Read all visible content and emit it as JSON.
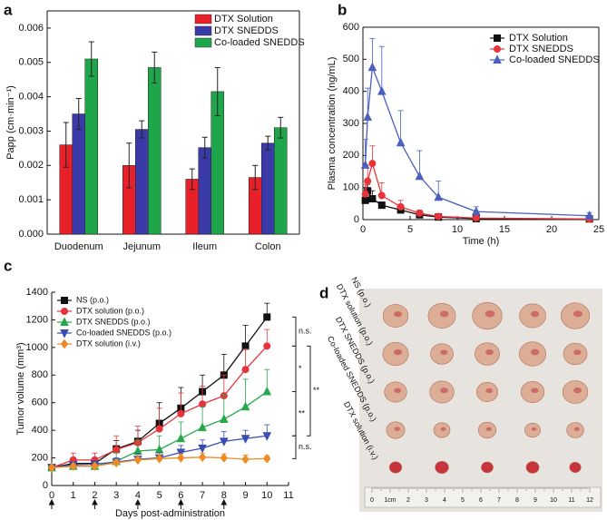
{
  "chart_data": [
    {
      "panel": "a",
      "type": "bar",
      "y_label": "Papp (cm·min⁻¹)",
      "categories": [
        "Duodenum",
        "Jejunum",
        "Ileum",
        "Colon"
      ],
      "series": [
        {
          "name": "DTX Solution",
          "color": "#e8202a",
          "values": [
            0.0026,
            0.002,
            0.0016,
            0.00165
          ],
          "errors": [
            0.00065,
            0.00065,
            0.0003,
            0.00035
          ]
        },
        {
          "name": "DTX SNEDDS",
          "color": "#3a3aa8",
          "values": [
            0.0035,
            0.00305,
            0.00252,
            0.00265
          ],
          "errors": [
            0.00045,
            0.00025,
            0.0003,
            0.0002
          ]
        },
        {
          "name": "Co-loaded SNEDDS",
          "color": "#1fa64a",
          "values": [
            0.0051,
            0.00485,
            0.00415,
            0.0031
          ],
          "errors": [
            0.0005,
            0.00045,
            0.0007,
            0.0003
          ]
        }
      ],
      "ylim": [
        0,
        0.0065
      ],
      "yticks": [
        {
          "value": 0,
          "label": "0.000"
        },
        {
          "value": 0.001,
          "label": "0.001"
        },
        {
          "value": 0.002,
          "label": "0.002"
        },
        {
          "value": 0.003,
          "label": "0.003"
        },
        {
          "value": 0.004,
          "label": "0.004"
        },
        {
          "value": 0.005,
          "label": "0.005"
        },
        {
          "value": 0.006,
          "label": "0.006"
        }
      ],
      "legend": "upper right",
      "annotations": [
        "**",
        "*",
        "*",
        "***",
        "**",
        "*",
        "**",
        "*",
        "*",
        "*",
        "*"
      ]
    },
    {
      "panel": "b",
      "type": "line",
      "x_label": "Time (h)",
      "y_label": "Plasma concentration (ng/mL)",
      "x": [
        0.25,
        0.5,
        1,
        2,
        4,
        6,
        8,
        12,
        24
      ],
      "series": [
        {
          "name": "DTX Solution",
          "color": "#111111",
          "marker": "square",
          "values": [
            60,
            90,
            65,
            45,
            30,
            15,
            8,
            3,
            2
          ],
          "errors": [
            20,
            20,
            25,
            10,
            10,
            5,
            3,
            2,
            1
          ]
        },
        {
          "name": "DTX SNEDDS",
          "color": "#e8333a",
          "marker": "circle",
          "values": [
            80,
            120,
            175,
            75,
            40,
            20,
            10,
            5,
            2
          ],
          "errors": [
            30,
            50,
            55,
            40,
            20,
            10,
            5,
            3,
            2
          ]
        },
        {
          "name": "Co-loaded SNEDDS",
          "color": "#4a5fc0",
          "marker": "triangle",
          "values": [
            170,
            320,
            475,
            400,
            240,
            135,
            70,
            25,
            12
          ],
          "errors": [
            80,
            90,
            90,
            140,
            100,
            80,
            50,
            15,
            10
          ]
        }
      ],
      "xlim": [
        0,
        25
      ],
      "xticks": [
        0,
        5,
        10,
        15,
        20,
        25
      ],
      "ylim": [
        0,
        600
      ],
      "yticks": [
        0,
        100,
        200,
        300,
        400,
        500,
        600
      ],
      "legend": "upper right"
    },
    {
      "panel": "c",
      "type": "line",
      "x_label": "Days post-administration",
      "y_label": "Tumor volume (mm³)",
      "x": [
        0,
        1,
        2,
        3,
        4,
        5,
        6,
        7,
        8,
        9,
        10
      ],
      "series": [
        {
          "name": "NS (p.o.)",
          "color": "#111111",
          "marker": "square",
          "values": [
            130,
            160,
            160,
            265,
            320,
            450,
            560,
            680,
            800,
            1010,
            1220
          ],
          "errors": [
            15,
            30,
            40,
            60,
            80,
            150,
            150,
            120,
            150,
            150,
            100
          ]
        },
        {
          "name": "DTX solution (p.o.)",
          "color": "#e8333a",
          "marker": "circle",
          "values": [
            130,
            185,
            185,
            260,
            310,
            410,
            520,
            590,
            650,
            840,
            1010
          ],
          "errors": [
            15,
            50,
            50,
            100,
            120,
            150,
            150,
            130,
            150,
            150,
            120
          ]
        },
        {
          "name": "DTX SNEDDS (p.o.)",
          "color": "#27a84a",
          "marker": "triangle",
          "values": [
            130,
            140,
            140,
            175,
            250,
            260,
            340,
            420,
            480,
            570,
            680
          ],
          "errors": [
            15,
            20,
            20,
            60,
            80,
            100,
            120,
            150,
            180,
            200,
            160
          ]
        },
        {
          "name": "Co-loaded SNEDDS (p.o.)",
          "color": "#3a4db0",
          "marker": "triangle-down",
          "values": [
            130,
            150,
            155,
            170,
            190,
            200,
            240,
            270,
            320,
            340,
            360
          ],
          "errors": [
            10,
            20,
            20,
            30,
            40,
            40,
            50,
            60,
            70,
            60,
            80
          ]
        },
        {
          "name": "DTX solution (i.v.)",
          "color": "#f08a24",
          "marker": "diamond",
          "values": [
            130,
            140,
            140,
            165,
            185,
            195,
            200,
            205,
            200,
            190,
            195
          ],
          "errors": [
            10,
            15,
            15,
            20,
            20,
            30,
            30,
            30,
            30,
            30,
            20
          ]
        }
      ],
      "xlim": [
        0,
        11
      ],
      "xticks": [
        0,
        1,
        2,
        3,
        4,
        5,
        6,
        7,
        8,
        9,
        10,
        11
      ],
      "ylim": [
        0,
        1400
      ],
      "yticks": [
        0,
        200,
        400,
        600,
        800,
        1000,
        1200,
        1400
      ],
      "dose_days": [
        0,
        2,
        4,
        6,
        8
      ],
      "legend": "upper left",
      "annotations": [
        "n.s.",
        "*",
        "**",
        "**",
        "n.s."
      ]
    }
  ],
  "photo": {
    "panel": "d",
    "row_labels": [
      "NS (p.o.)",
      "DTX solution (p.o.)",
      "DTX SNEDDS (p.o.)",
      "Co-loaded SNEDDS (p.o.)",
      "DTX solution (i.v.)"
    ],
    "ruler_labels": [
      "0",
      "1cm",
      "2",
      "3",
      "4",
      "5",
      "6",
      "7",
      "8",
      "9",
      "10",
      "11",
      "12"
    ]
  }
}
